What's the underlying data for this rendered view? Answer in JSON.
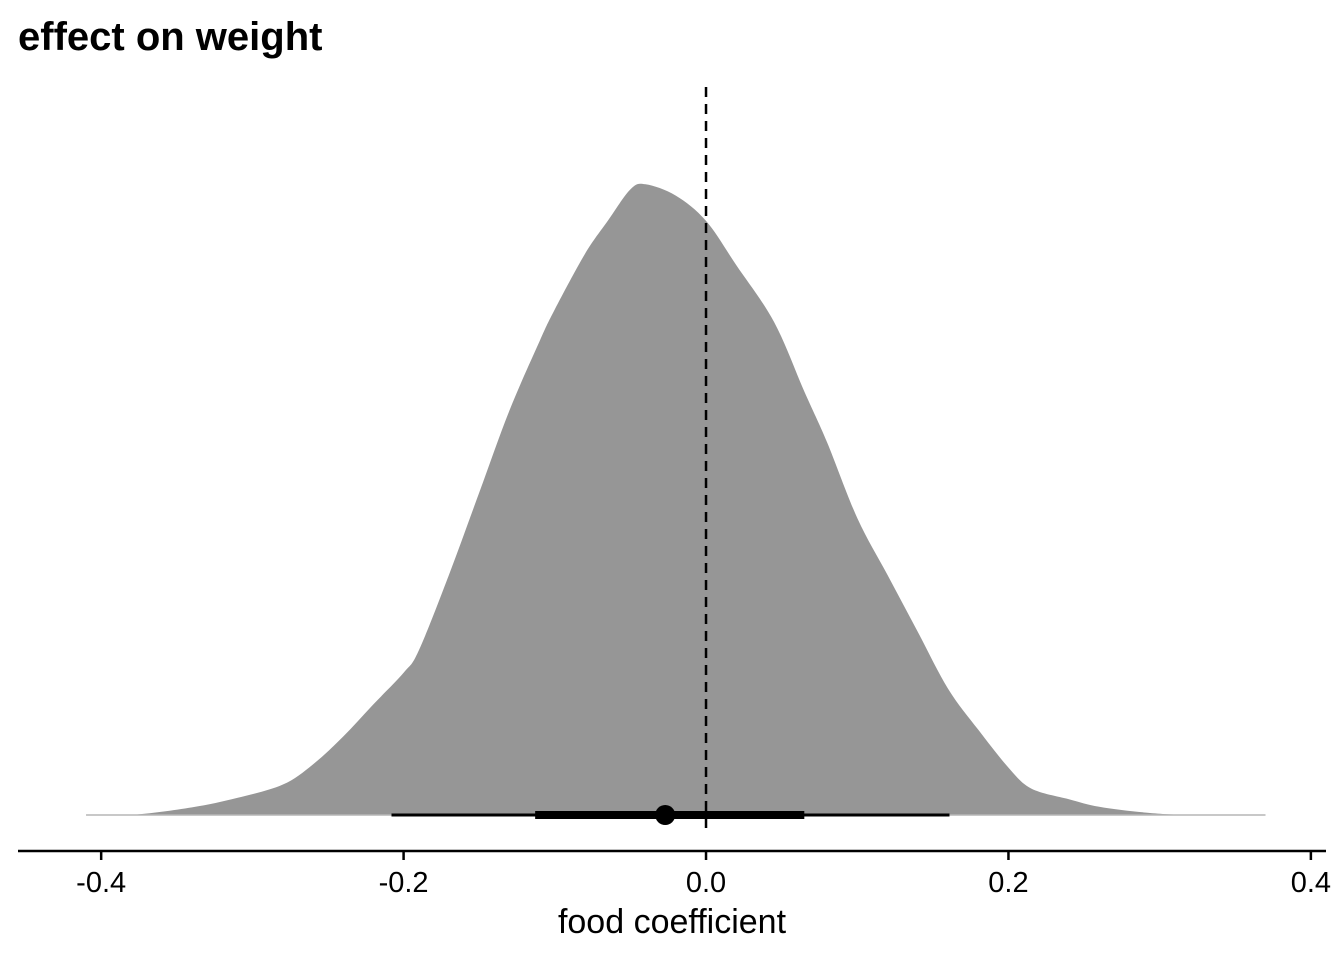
{
  "chart_data": {
    "type": "area",
    "title": "effect on weight",
    "xlabel": "food coefficient",
    "ylabel": "",
    "xlim": [
      -0.455,
      0.41
    ],
    "x_ticks": [
      -0.4,
      -0.2,
      0.0,
      0.2,
      0.4
    ],
    "x_tick_labels": [
      "-0.4",
      "-0.2",
      "0.0",
      "0.2",
      "0.4"
    ],
    "y_axis_visible": false,
    "grid": false,
    "fill_color": "#969696",
    "reference_line": {
      "x": 0.0,
      "style": "dashed",
      "color": "#000000"
    },
    "density": {
      "x": [
        -0.41,
        -0.38,
        -0.34,
        -0.31,
        -0.28,
        -0.26,
        -0.24,
        -0.22,
        -0.2,
        -0.19,
        -0.17,
        -0.15,
        -0.13,
        -0.11,
        -0.1,
        -0.08,
        -0.065,
        -0.05,
        -0.04,
        -0.02,
        0.0,
        0.02,
        0.045,
        0.065,
        0.08,
        0.1,
        0.12,
        0.14,
        0.16,
        0.18,
        0.2,
        0.215,
        0.24,
        0.26,
        0.29,
        0.32,
        0.37
      ],
      "y": [
        0.0,
        0.0,
        0.012,
        0.027,
        0.048,
        0.08,
        0.124,
        0.175,
        0.225,
        0.26,
        0.38,
        0.51,
        0.64,
        0.75,
        0.8,
        0.888,
        0.94,
        0.99,
        0.998,
        0.98,
        0.94,
        0.87,
        0.78,
        0.67,
        0.59,
        0.47,
        0.38,
        0.29,
        0.2,
        0.135,
        0.075,
        0.042,
        0.025,
        0.013,
        0.004,
        0.0,
        0.0
      ]
    },
    "interval": {
      "point": -0.027,
      "inner": [
        -0.113,
        0.065
      ],
      "outer": [
        -0.208,
        0.161
      ]
    }
  }
}
